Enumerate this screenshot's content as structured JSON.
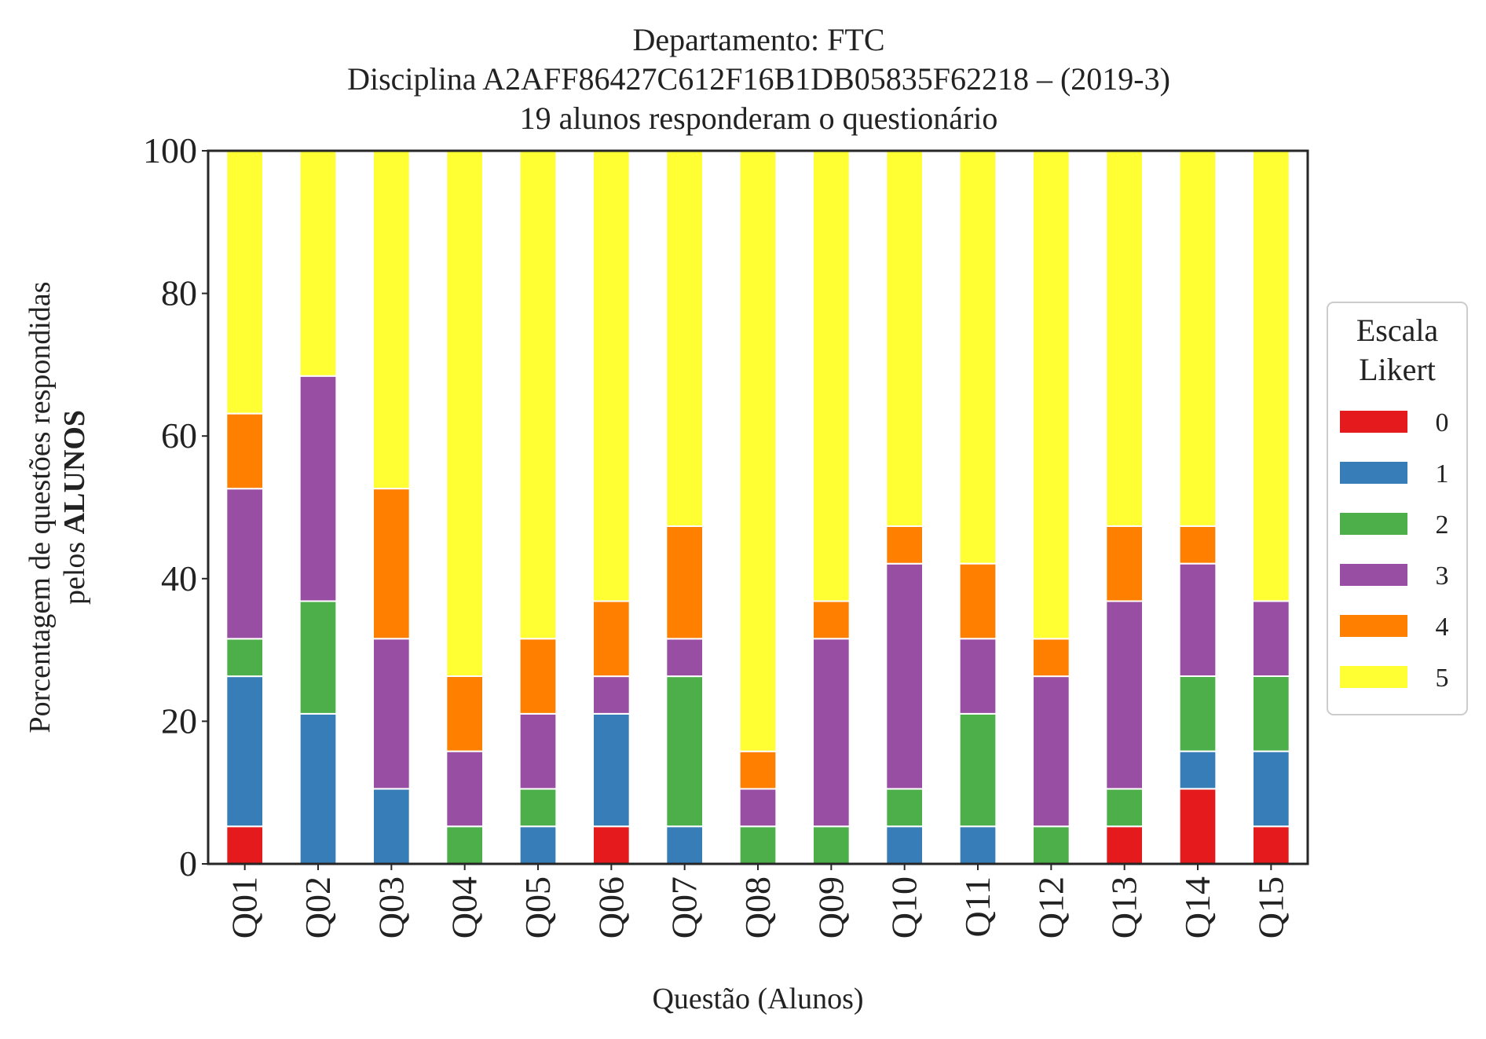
{
  "chart_data": {
    "type": "bar",
    "stacked": true,
    "title_lines": [
      "Departamento: FTC",
      "Disciplina A2AFF86427C612F16B1DB05835F62218 – (2019-3)",
      "19 alunos responderam o questionário"
    ],
    "xlabel": "Questão (Alunos)",
    "ylabel_line1": "Porcentagem de questões respondidas",
    "ylabel_line2_prefix": "pelos ",
    "ylabel_line2_bold": "ALUNOS",
    "ylim": [
      0,
      100
    ],
    "yticks": [
      "0",
      "20",
      "40",
      "60",
      "80",
      "100"
    ],
    "grid": false,
    "legend": {
      "title_lines": [
        "Escala",
        "Likert"
      ],
      "position": "right"
    },
    "categories": [
      "Q01",
      "Q02",
      "Q03",
      "Q04",
      "Q05",
      "Q06",
      "Q07",
      "Q08",
      "Q09",
      "Q10",
      "Q11",
      "Q12",
      "Q13",
      "Q14",
      "Q15"
    ],
    "series": [
      {
        "name": "0",
        "color": "#e41a1c",
        "values": [
          5.26,
          0,
          0,
          0,
          0,
          5.26,
          0,
          0,
          0,
          0,
          0,
          0,
          5.26,
          10.53,
          5.26
        ]
      },
      {
        "name": "1",
        "color": "#377eb8",
        "values": [
          21.05,
          21.05,
          10.53,
          0,
          5.26,
          15.79,
          5.26,
          0,
          0,
          5.26,
          5.26,
          0,
          0,
          5.26,
          10.53
        ]
      },
      {
        "name": "2",
        "color": "#4daf4a",
        "values": [
          5.26,
          15.79,
          0,
          5.26,
          5.26,
          0,
          21.05,
          5.26,
          5.26,
          5.26,
          15.79,
          5.26,
          5.26,
          10.53,
          10.53
        ]
      },
      {
        "name": "3",
        "color": "#984ea3",
        "values": [
          21.05,
          31.58,
          21.05,
          10.53,
          10.53,
          5.26,
          5.26,
          5.26,
          26.32,
          31.58,
          10.53,
          21.05,
          26.32,
          15.79,
          10.53
        ]
      },
      {
        "name": "4",
        "color": "#ff7f00",
        "values": [
          10.53,
          0,
          21.05,
          10.53,
          10.53,
          10.53,
          15.79,
          5.26,
          5.26,
          5.26,
          10.53,
          5.26,
          10.53,
          5.26,
          0
        ]
      },
      {
        "name": "5",
        "color": "#ffff33",
        "values": [
          36.84,
          31.58,
          47.37,
          73.68,
          68.42,
          63.16,
          52.63,
          84.21,
          63.16,
          52.63,
          57.89,
          68.42,
          52.63,
          52.63,
          63.16
        ]
      }
    ]
  }
}
